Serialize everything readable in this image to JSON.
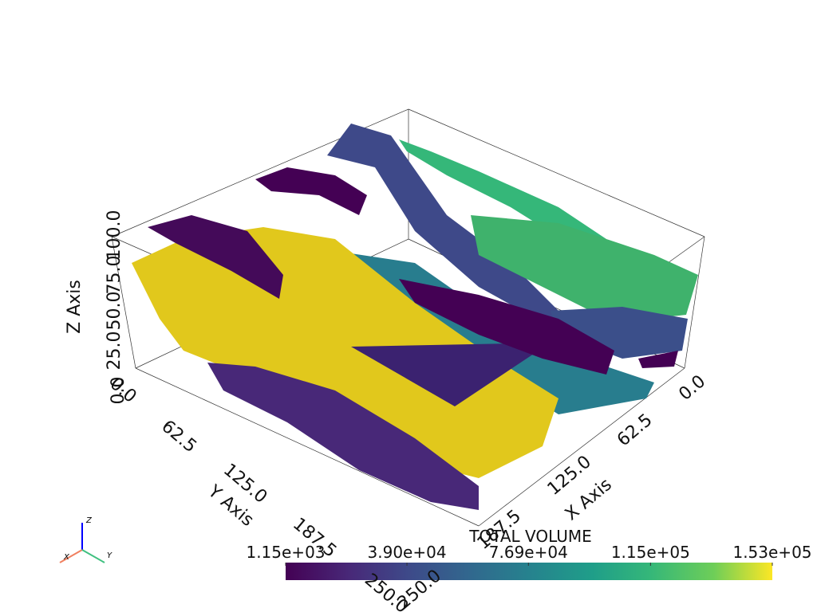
{
  "scene": {
    "x_axis": {
      "label": "X Axis",
      "ticks": [
        "0.0",
        "62.5",
        "125.0",
        "187.5",
        "250.0"
      ]
    },
    "y_axis": {
      "label": "Y Axis",
      "ticks": [
        "0.0",
        "62.5",
        "125.0",
        "187.5",
        "250.0"
      ]
    },
    "z_axis": {
      "label": "Z Axis",
      "ticks": [
        "0.0",
        "25.0",
        "50.0",
        "75.0",
        "100.0"
      ]
    },
    "orientation": {
      "x": "X",
      "y": "Y",
      "z": "Z"
    }
  },
  "colorbar": {
    "title": "TOTAL VOLUME",
    "clim": [
      1150,
      153000
    ],
    "ticks": [
      {
        "value": 1150,
        "label": "1.15e+03"
      },
      {
        "value": 39000,
        "label": "3.90e+04"
      },
      {
        "value": 76900,
        "label": "7.69e+04"
      },
      {
        "value": 115000,
        "label": "1.15e+05"
      },
      {
        "value": 153000,
        "label": "1.53e+05"
      }
    ]
  }
}
